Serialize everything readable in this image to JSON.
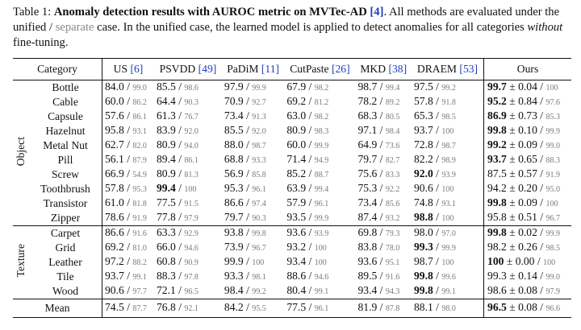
{
  "caption": {
    "label": "Table 1:",
    "title": "Anomaly detection results with AUROC metric on MVTec-AD",
    "title_ref": "[4]",
    "text1": ". All methods are evaluated under the unified / ",
    "separate_word": "separate",
    "text2": " case. In the unified case, the learned model is applied to detect anomalies for all categories ",
    "without_word": "without",
    "text3": " fine-tuning."
  },
  "headers": {
    "category": "Category",
    "methods": [
      {
        "name": "US",
        "ref": "[6]"
      },
      {
        "name": "PSVDD",
        "ref": "[49]"
      },
      {
        "name": "PaDiM",
        "ref": "[11]"
      },
      {
        "name": "CutPaste",
        "ref": "[26]"
      },
      {
        "name": "MKD",
        "ref": "[38]"
      },
      {
        "name": "DRAEM",
        "ref": "[53]"
      },
      {
        "name": "Ours",
        "ref": ""
      }
    ]
  },
  "groups": [
    {
      "label": "Object",
      "rows": [
        {
          "category": "Bottle",
          "values": [
            [
              "84.0",
              "99.0"
            ],
            [
              "85.5",
              "98.6"
            ],
            [
              "97.9",
              "99.9"
            ],
            [
              "67.9",
              "98.2"
            ],
            [
              "98.7",
              "99.4"
            ],
            [
              "97.5",
              "99.2"
            ]
          ],
          "ours": [
            "99.7",
            "0.04",
            "100"
          ],
          "bold": [],
          "ours_bold": true
        },
        {
          "category": "Cable",
          "values": [
            [
              "60.0",
              "86.2"
            ],
            [
              "64.4",
              "90.3"
            ],
            [
              "70.9",
              "92.7"
            ],
            [
              "69.2",
              "81.2"
            ],
            [
              "78.2",
              "89.2"
            ],
            [
              "57.8",
              "91.8"
            ]
          ],
          "ours": [
            "95.2",
            "0.84",
            "97.6"
          ],
          "bold": [],
          "ours_bold": true
        },
        {
          "category": "Capsule",
          "values": [
            [
              "57.6",
              "86.1"
            ],
            [
              "61.3",
              "76.7"
            ],
            [
              "73.4",
              "91.3"
            ],
            [
              "63.0",
              "98.2"
            ],
            [
              "68.3",
              "80.5"
            ],
            [
              "65.3",
              "98.5"
            ]
          ],
          "ours": [
            "86.9",
            "0.73",
            "85.3"
          ],
          "bold": [],
          "ours_bold": true
        },
        {
          "category": "Hazelnut",
          "values": [
            [
              "95.8",
              "93.1"
            ],
            [
              "83.9",
              "92.0"
            ],
            [
              "85.5",
              "92.0"
            ],
            [
              "80.9",
              "98.3"
            ],
            [
              "97.1",
              "98.4"
            ],
            [
              "93.7",
              "100"
            ]
          ],
          "ours": [
            "99.8",
            "0.10",
            "99.9"
          ],
          "bold": [],
          "ours_bold": true
        },
        {
          "category": "Metal Nut",
          "values": [
            [
              "62.7",
              "82.0"
            ],
            [
              "80.9",
              "94.0"
            ],
            [
              "88.0",
              "98.7"
            ],
            [
              "60.0",
              "99.9"
            ],
            [
              "64.9",
              "73.6"
            ],
            [
              "72.8",
              "98.7"
            ]
          ],
          "ours": [
            "99.2",
            "0.09",
            "99.0"
          ],
          "bold": [],
          "ours_bold": true
        },
        {
          "category": "Pill",
          "values": [
            [
              "56.1",
              "87.9"
            ],
            [
              "89.4",
              "86.1"
            ],
            [
              "68.8",
              "93.3"
            ],
            [
              "71.4",
              "94.9"
            ],
            [
              "79.7",
              "82.7"
            ],
            [
              "82.2",
              "98.9"
            ]
          ],
          "ours": [
            "93.7",
            "0.65",
            "88.3"
          ],
          "bold": [],
          "ours_bold": true
        },
        {
          "category": "Screw",
          "values": [
            [
              "66.9",
              "54.9"
            ],
            [
              "80.9",
              "81.3"
            ],
            [
              "56.9",
              "85.8"
            ],
            [
              "85.2",
              "88.7"
            ],
            [
              "75.6",
              "83.3"
            ],
            [
              "92.0",
              "93.9"
            ]
          ],
          "ours": [
            "87.5",
            "0.57",
            "91.9"
          ],
          "bold": [
            5
          ],
          "ours_bold": false
        },
        {
          "category": "Toothbrush",
          "values": [
            [
              "57.8",
              "95.3"
            ],
            [
              "99.4",
              "100"
            ],
            [
              "95.3",
              "96.1"
            ],
            [
              "63.9",
              "99.4"
            ],
            [
              "75.3",
              "92.2"
            ],
            [
              "90.6",
              "100"
            ]
          ],
          "ours": [
            "94.2",
            "0.20",
            "95.0"
          ],
          "bold": [
            1
          ],
          "ours_bold": false
        },
        {
          "category": "Transistor",
          "values": [
            [
              "61.0",
              "81.8"
            ],
            [
              "77.5",
              "91.5"
            ],
            [
              "86.6",
              "97.4"
            ],
            [
              "57.9",
              "96.1"
            ],
            [
              "73.4",
              "85.6"
            ],
            [
              "74.8",
              "93.1"
            ]
          ],
          "ours": [
            "99.8",
            "0.09",
            "100"
          ],
          "bold": [],
          "ours_bold": true
        },
        {
          "category": "Zipper",
          "values": [
            [
              "78.6",
              "91.9"
            ],
            [
              "77.8",
              "97.9"
            ],
            [
              "79.7",
              "90.3"
            ],
            [
              "93.5",
              "99.9"
            ],
            [
              "87.4",
              "93.2"
            ],
            [
              "98.8",
              "100"
            ]
          ],
          "ours": [
            "95.8",
            "0.51",
            "96.7"
          ],
          "bold": [
            5
          ],
          "ours_bold": false
        }
      ]
    },
    {
      "label": "Texture",
      "rows": [
        {
          "category": "Carpet",
          "values": [
            [
              "86.6",
              "91.6"
            ],
            [
              "63.3",
              "92.9"
            ],
            [
              "93.8",
              "99.8"
            ],
            [
              "93.6",
              "93.9"
            ],
            [
              "69.8",
              "79.3"
            ],
            [
              "98.0",
              "97.0"
            ]
          ],
          "ours": [
            "99.8",
            "0.02",
            "99.9"
          ],
          "bold": [],
          "ours_bold": true
        },
        {
          "category": "Grid",
          "values": [
            [
              "69.2",
              "81.0"
            ],
            [
              "66.0",
              "94.6"
            ],
            [
              "73.9",
              "96.7"
            ],
            [
              "93.2",
              "100"
            ],
            [
              "83.8",
              "78.0"
            ],
            [
              "99.3",
              "99.9"
            ]
          ],
          "ours": [
            "98.2",
            "0.26",
            "98.5"
          ],
          "bold": [
            5
          ],
          "ours_bold": false
        },
        {
          "category": "Leather",
          "values": [
            [
              "97.2",
              "88.2"
            ],
            [
              "60.8",
              "90.9"
            ],
            [
              "99.9",
              "100"
            ],
            [
              "93.4",
              "100"
            ],
            [
              "93.6",
              "95.1"
            ],
            [
              "98.7",
              "100"
            ]
          ],
          "ours": [
            "100",
            "0.00",
            "100"
          ],
          "bold": [],
          "ours_bold": true
        },
        {
          "category": "Tile",
          "values": [
            [
              "93.7",
              "99.1"
            ],
            [
              "88.3",
              "97.8"
            ],
            [
              "93.3",
              "98.1"
            ],
            [
              "88.6",
              "94.6"
            ],
            [
              "89.5",
              "91.6"
            ],
            [
              "99.8",
              "99.6"
            ]
          ],
          "ours": [
            "99.3",
            "0.14",
            "99.0"
          ],
          "bold": [
            5
          ],
          "ours_bold": false
        },
        {
          "category": "Wood",
          "values": [
            [
              "90.6",
              "97.7"
            ],
            [
              "72.1",
              "96.5"
            ],
            [
              "98.4",
              "99.2"
            ],
            [
              "80.4",
              "99.1"
            ],
            [
              "93.4",
              "94.3"
            ],
            [
              "99.8",
              "99.1"
            ]
          ],
          "ours": [
            "98.6",
            "0.08",
            "97.9"
          ],
          "bold": [
            5
          ],
          "ours_bold": false
        }
      ]
    }
  ],
  "mean": {
    "category": "Mean",
    "values": [
      [
        "74.5",
        "87.7"
      ],
      [
        "76.8",
        "92.1"
      ],
      [
        "84.2",
        "95.5"
      ],
      [
        "77.5",
        "96.1"
      ],
      [
        "81.9",
        "87.8"
      ],
      [
        "88.1",
        "98.0"
      ]
    ],
    "ours": [
      "96.5",
      "0.08",
      "96.6"
    ],
    "ours_bold": true
  }
}
